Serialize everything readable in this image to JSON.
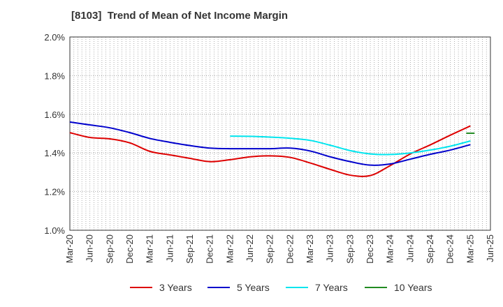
{
  "chart_data": {
    "type": "line",
    "title": "[8103]  Trend of Mean of Net Income Margin",
    "xlabel": "",
    "ylabel": "",
    "x_ticks": [
      "Mar-20",
      "Jun-20",
      "Sep-20",
      "Dec-20",
      "Mar-21",
      "Jun-21",
      "Sep-21",
      "Dec-21",
      "Mar-22",
      "Jun-22",
      "Sep-22",
      "Dec-22",
      "Mar-23",
      "Jun-23",
      "Sep-23",
      "Dec-23",
      "Mar-24",
      "Jun-24",
      "Sep-24",
      "Dec-24",
      "Mar-25",
      "Jun-25"
    ],
    "y_ticks": [
      "1.0%",
      "1.2%",
      "1.4%",
      "1.6%",
      "1.8%",
      "2.0%"
    ],
    "ylim": [
      1.0,
      2.0
    ],
    "grid": true,
    "legend_position": "bottom",
    "series": [
      {
        "name": "3 Years",
        "color": "#dd0000",
        "x": [
          "Mar-20",
          "Jun-20",
          "Sep-20",
          "Dec-20",
          "Mar-21",
          "Jun-21",
          "Sep-21",
          "Dec-21",
          "Mar-22",
          "Jun-22",
          "Sep-22",
          "Dec-22",
          "Mar-23",
          "Jun-23",
          "Sep-23",
          "Dec-23",
          "Mar-24",
          "Jun-24",
          "Sep-24",
          "Dec-24",
          "Mar-25"
        ],
        "values": [
          1.505,
          1.48,
          1.473,
          1.452,
          1.408,
          1.39,
          1.372,
          1.355,
          1.365,
          1.38,
          1.385,
          1.377,
          1.348,
          1.315,
          1.285,
          1.283,
          1.335,
          1.395,
          1.442,
          1.492,
          1.54
        ]
      },
      {
        "name": "5 Years",
        "color": "#0000cc",
        "x": [
          "Mar-20",
          "Jun-20",
          "Sep-20",
          "Dec-20",
          "Mar-21",
          "Jun-21",
          "Sep-21",
          "Dec-21",
          "Mar-22",
          "Jun-22",
          "Sep-22",
          "Dec-22",
          "Mar-23",
          "Jun-23",
          "Sep-23",
          "Dec-23",
          "Mar-24",
          "Jun-24",
          "Sep-24",
          "Dec-24",
          "Mar-25"
        ],
        "values": [
          1.56,
          1.545,
          1.53,
          1.505,
          1.475,
          1.455,
          1.438,
          1.425,
          1.422,
          1.422,
          1.422,
          1.425,
          1.41,
          1.38,
          1.355,
          1.337,
          1.343,
          1.368,
          1.393,
          1.415,
          1.443
        ]
      },
      {
        "name": "7 Years",
        "color": "#00e5ee",
        "x": [
          "Mar-22",
          "Jun-22",
          "Sep-22",
          "Dec-22",
          "Mar-23",
          "Jun-23",
          "Sep-23",
          "Dec-23",
          "Mar-24",
          "Jun-24",
          "Sep-24",
          "Dec-24",
          "Mar-25"
        ],
        "values": [
          1.487,
          1.486,
          1.482,
          1.476,
          1.465,
          1.44,
          1.412,
          1.395,
          1.392,
          1.4,
          1.415,
          1.435,
          1.462
        ]
      },
      {
        "name": "10 Years",
        "color": "#228b22",
        "x": [
          "Mar-25"
        ],
        "values": [
          1.502
        ]
      }
    ]
  }
}
